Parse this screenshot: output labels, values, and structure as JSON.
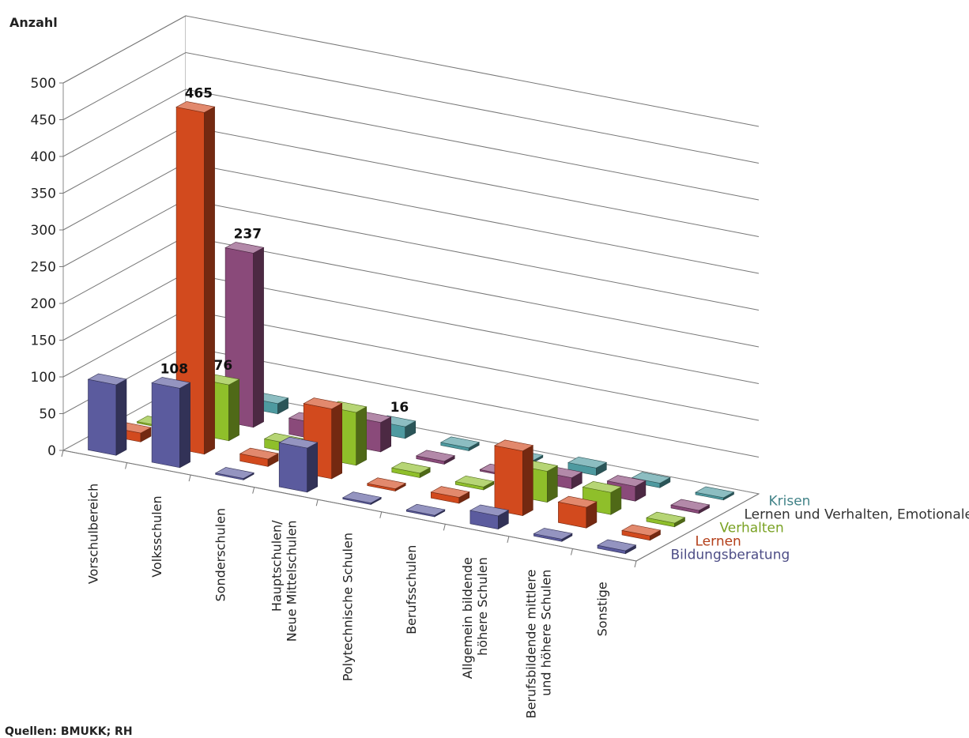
{
  "chart_data": {
    "type": "bar",
    "variant": "3d-column",
    "ylabel": "Anzahl",
    "ylim": [
      0,
      500
    ],
    "yticks": [
      "0",
      "50",
      "100",
      "150",
      "200",
      "250",
      "300",
      "350",
      "400",
      "450",
      "500"
    ],
    "grid": true,
    "legend_position": "right",
    "categories": [
      [
        "Vorschulbereich"
      ],
      [
        "Volksschulen"
      ],
      [
        "Sonderschulen"
      ],
      [
        "Hauptschulen/",
        "Neue Mittelschulen"
      ],
      [
        "Polytechnische Schulen"
      ],
      [
        "Berufsschulen"
      ],
      [
        "Allgemein bildende",
        "höhere Schulen"
      ],
      [
        "Berufsbildende mittlere",
        "und höhere Schulen"
      ],
      [
        "Sonstige"
      ]
    ],
    "series": [
      {
        "name": "Bildungsberatung",
        "color": "#5b5b9e",
        "values": [
          96,
          108,
          2,
          60,
          2,
          2,
          18,
          3,
          4
        ]
      },
      {
        "name": "Lernen",
        "color": "#d24a1e",
        "values": [
          12,
          465,
          10,
          95,
          3,
          8,
          88,
          28,
          6
        ]
      },
      {
        "name": "Verhalten",
        "color": "#8fbf2a",
        "values": [
          0,
          76,
          12,
          72,
          6,
          4,
          42,
          30,
          5
        ]
      },
      {
        "name": "Lernen und Verhalten, Emotionales",
        "color": "#8a4a7a",
        "values": [
          0,
          237,
          22,
          40,
          4,
          2,
          15,
          20,
          4
        ]
      },
      {
        "name": "Krisen",
        "color": "#4e9aa0",
        "values": [
          0,
          14,
          12,
          16,
          4,
          3,
          10,
          6,
          3
        ]
      }
    ],
    "data_labels": [
      {
        "series": 1,
        "category": 1,
        "text": "465"
      },
      {
        "series": 3,
        "category": 1,
        "text": "237"
      },
      {
        "series": 0,
        "category": 1,
        "text": "108"
      },
      {
        "series": 2,
        "category": 1,
        "text": "76"
      },
      {
        "series": 4,
        "category": 3,
        "text": "16"
      }
    ]
  },
  "source": "Quellen: BMUKK; RH"
}
